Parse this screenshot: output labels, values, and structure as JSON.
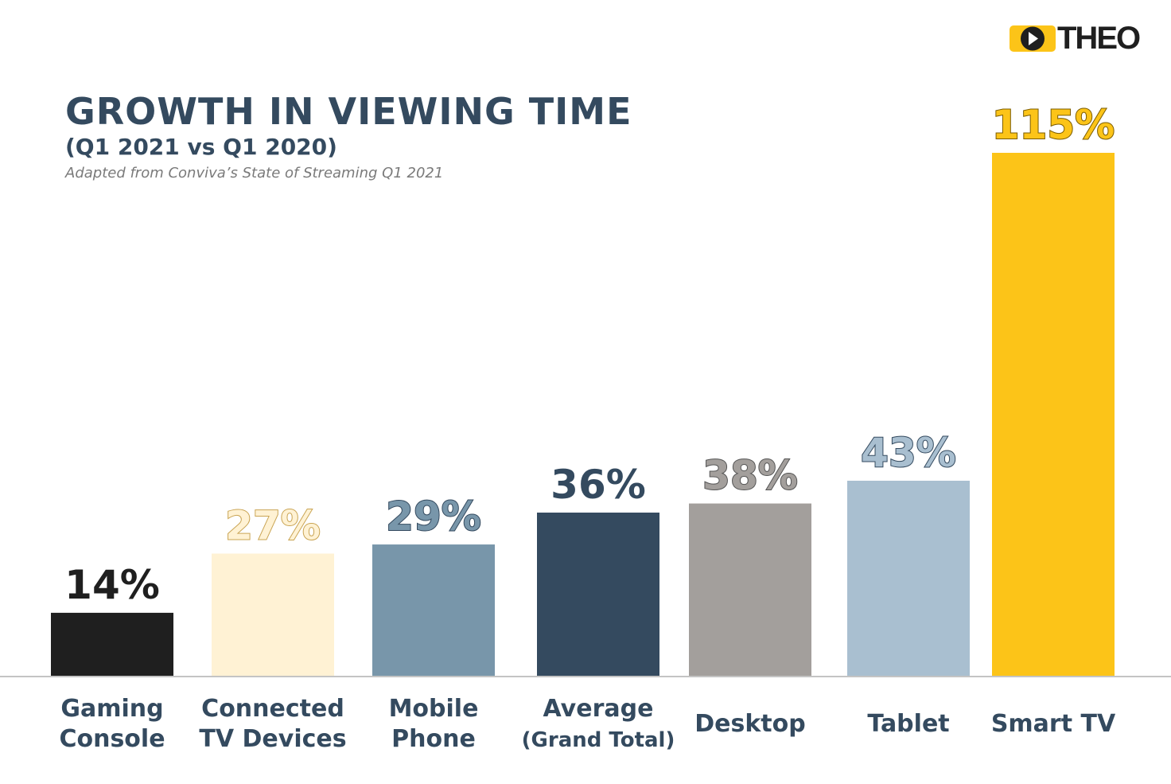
{
  "brand": {
    "name": "THEO",
    "accent": "#fcc418"
  },
  "chart_data": {
    "type": "bar",
    "title": "GROWTH IN VIEWING TIME",
    "subtitle": "(Q1 2021 vs Q1 2020)",
    "source": "Adapted from Conviva’s State of Streaming Q1 2021",
    "ylabel": "",
    "xlabel": "",
    "ylim": [
      0,
      115
    ],
    "grid": false,
    "categories": [
      {
        "lines": [
          "Gaming",
          "Console"
        ]
      },
      {
        "lines": [
          "Connected",
          "TV Devices"
        ]
      },
      {
        "lines": [
          "Mobile",
          "Phone"
        ]
      },
      {
        "lines": [
          "Average",
          "(Grand Total)"
        ]
      },
      {
        "lines": [
          "Desktop"
        ]
      },
      {
        "lines": [
          "Tablet"
        ]
      },
      {
        "lines": [
          "Smart TV"
        ]
      }
    ],
    "values": [
      14,
      27,
      29,
      36,
      38,
      43,
      115
    ],
    "value_labels": [
      "14%",
      "27%",
      "29%",
      "36%",
      "38%",
      "43%",
      "115%"
    ],
    "colors": [
      "#1f1f1f",
      "#fff2d4",
      "#7896aa",
      "#344a5f",
      "#a39f9c",
      "#a9bfd0",
      "#fcc418"
    ],
    "label_colors": [
      "#1f1f1f",
      "#fff2d4",
      "#7896aa",
      "#344a5f",
      "#a39f9c",
      "#a9bfd0",
      "#fcc418"
    ],
    "label_strokes": [
      "none",
      "#c9a453",
      "#344a5f",
      "none",
      "#555555",
      "#344a5f",
      "#7a5b00"
    ]
  }
}
